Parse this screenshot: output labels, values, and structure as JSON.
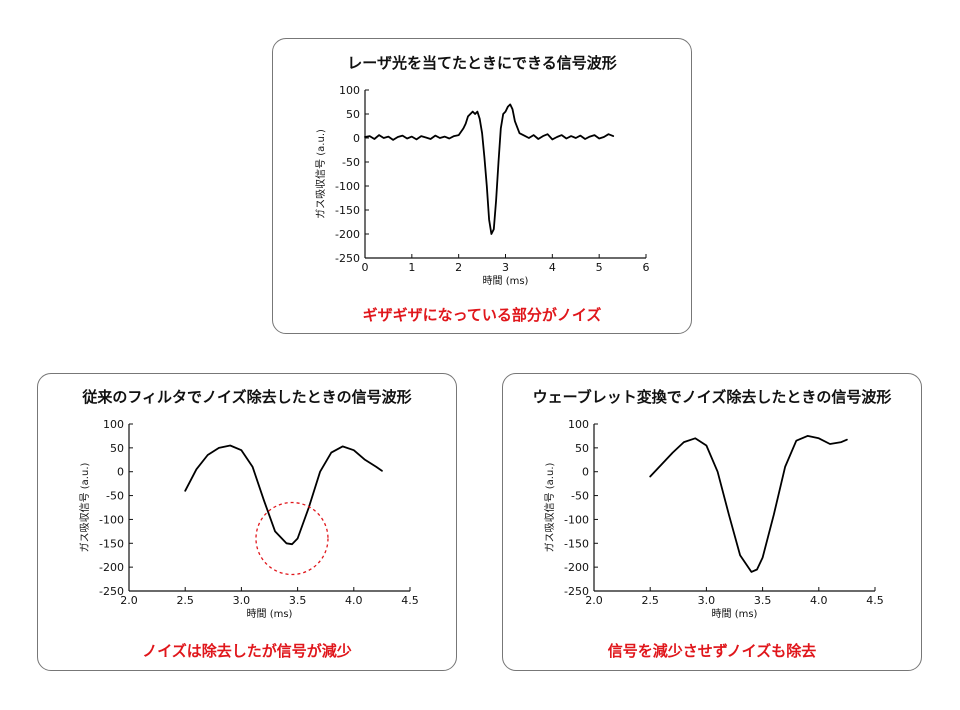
{
  "chart_data": [
    {
      "type": "line",
      "title": "レーザ光を当てたときにできる信号波形",
      "caption": "ギザギザになっている部分がノイズ",
      "xlabel": "時間 (ms)",
      "ylabel": "ガス吸収信号 (a.u.)",
      "xlim": [
        0,
        6
      ],
      "ylim": [
        -250,
        100
      ],
      "xticks": [
        0,
        1,
        2,
        3,
        4,
        5,
        6
      ],
      "yticks": [
        100,
        50,
        0,
        -50,
        -100,
        -150,
        -200,
        -250
      ],
      "series": [
        {
          "x": [
            0,
            0.1,
            0.2,
            0.3,
            0.4,
            0.5,
            0.6,
            0.7,
            0.8,
            0.9,
            1.0,
            1.1,
            1.2,
            1.3,
            1.4,
            1.5,
            1.6,
            1.7,
            1.8,
            1.9,
            2.0,
            2.1,
            2.15,
            2.2,
            2.3,
            2.35,
            2.4,
            2.45,
            2.5,
            2.55,
            2.6,
            2.65,
            2.7,
            2.75,
            2.8,
            2.85,
            2.9,
            2.95,
            3.0,
            3.05,
            3.1,
            3.15,
            3.2,
            3.3,
            3.4,
            3.5,
            3.6,
            3.7,
            3.8,
            3.9,
            4.0,
            4.1,
            4.2,
            4.3,
            4.4,
            4.5,
            4.6,
            4.7,
            4.8,
            4.9,
            5.0,
            5.1,
            5.2,
            5.3
          ],
          "y": [
            2,
            4,
            -2,
            6,
            0,
            3,
            -4,
            2,
            5,
            -1,
            3,
            -3,
            4,
            1,
            -2,
            5,
            0,
            3,
            -1,
            4,
            6,
            20,
            30,
            45,
            55,
            50,
            55,
            40,
            10,
            -40,
            -100,
            -170,
            -200,
            -190,
            -130,
            -50,
            20,
            50,
            55,
            65,
            70,
            60,
            35,
            10,
            5,
            0,
            6,
            -2,
            4,
            8,
            -3,
            2,
            6,
            -1,
            4,
            0,
            5,
            -2,
            3,
            6,
            -1,
            2,
            8,
            4
          ]
        }
      ]
    },
    {
      "type": "line",
      "title": "従来のフィルタでノイズ除去したときの信号波形",
      "caption": "ノイズは除去したが信号が減少",
      "xlabel": "時間 (ms)",
      "ylabel": "ガス吸収信号 (a.u.)",
      "xlim": [
        2.0,
        4.5
      ],
      "ylim": [
        -250,
        100
      ],
      "xticks": [
        "2.0",
        "2.5",
        "3.0",
        "3.5",
        "4.0",
        "4.5"
      ],
      "yticks": [
        100,
        50,
        0,
        -50,
        -100,
        -150,
        -200,
        -250
      ],
      "highlight_circle": {
        "x": 3.45,
        "y": -140
      },
      "series": [
        {
          "x": [
            2.5,
            2.6,
            2.7,
            2.8,
            2.9,
            3.0,
            3.1,
            3.2,
            3.3,
            3.4,
            3.45,
            3.5,
            3.6,
            3.7,
            3.8,
            3.9,
            4.0,
            4.1,
            4.2,
            4.25
          ],
          "y": [
            -40,
            5,
            35,
            50,
            55,
            45,
            10,
            -60,
            -125,
            -150,
            -152,
            -140,
            -75,
            0,
            40,
            53,
            45,
            25,
            10,
            2
          ]
        }
      ]
    },
    {
      "type": "line",
      "title": "ウェーブレット変換でノイズ除去したときの信号波形",
      "caption": "信号を減少させずノイズも除去",
      "xlabel": "時間 (ms)",
      "ylabel": "ガス吸収信号 (a.u.)",
      "xlim": [
        2.0,
        4.5
      ],
      "ylim": [
        -250,
        100
      ],
      "xticks": [
        "2.0",
        "2.5",
        "3.0",
        "3.5",
        "4.0",
        "4.5"
      ],
      "yticks": [
        100,
        50,
        0,
        -50,
        -100,
        -150,
        -200,
        -250
      ],
      "series": [
        {
          "x": [
            2.5,
            2.6,
            2.7,
            2.8,
            2.9,
            3.0,
            3.1,
            3.2,
            3.3,
            3.4,
            3.45,
            3.5,
            3.6,
            3.7,
            3.8,
            3.9,
            4.0,
            4.1,
            4.2,
            4.25
          ],
          "y": [
            -10,
            15,
            40,
            62,
            70,
            55,
            0,
            -90,
            -175,
            -210,
            -205,
            -180,
            -90,
            10,
            65,
            75,
            70,
            58,
            62,
            67
          ]
        }
      ]
    }
  ]
}
